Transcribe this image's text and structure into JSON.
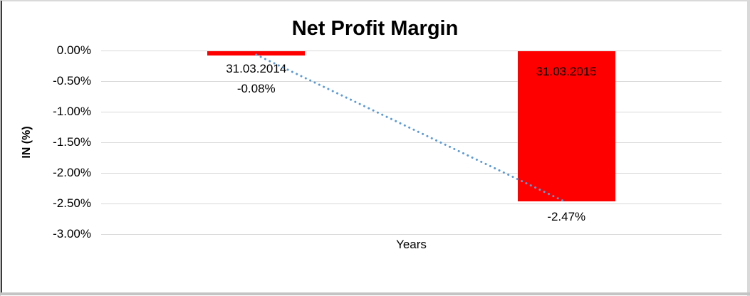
{
  "chart_data": {
    "type": "bar",
    "title": "Net Profit Margin",
    "xlabel": "Years",
    "ylabel": "IN (%)",
    "categories": [
      "31.03.2014",
      "31.03.2015"
    ],
    "values": [
      -0.08,
      -2.47
    ],
    "value_labels": [
      "-0.08%",
      "-2.47%"
    ],
    "category_label_positions": [
      "below-bar",
      "inside-top"
    ],
    "value_label_positions": [
      "below-category-label",
      "below-bar"
    ],
    "yticks": [
      "0.00%",
      "-0.50%",
      "-1.00%",
      "-1.50%",
      "-2.00%",
      "-2.50%",
      "-3.00%"
    ],
    "ylim": [
      -3.0,
      0.0
    ],
    "grid": true,
    "legend": false,
    "bar_color": "#FF0000",
    "gridline_color": "#D9D9D9",
    "text_color": "#000000",
    "trendline": {
      "type": "linear",
      "style": "dotted",
      "color": "#5B9BD5",
      "from_category": "31.03.2014",
      "to_category": "31.03.2015"
    }
  }
}
